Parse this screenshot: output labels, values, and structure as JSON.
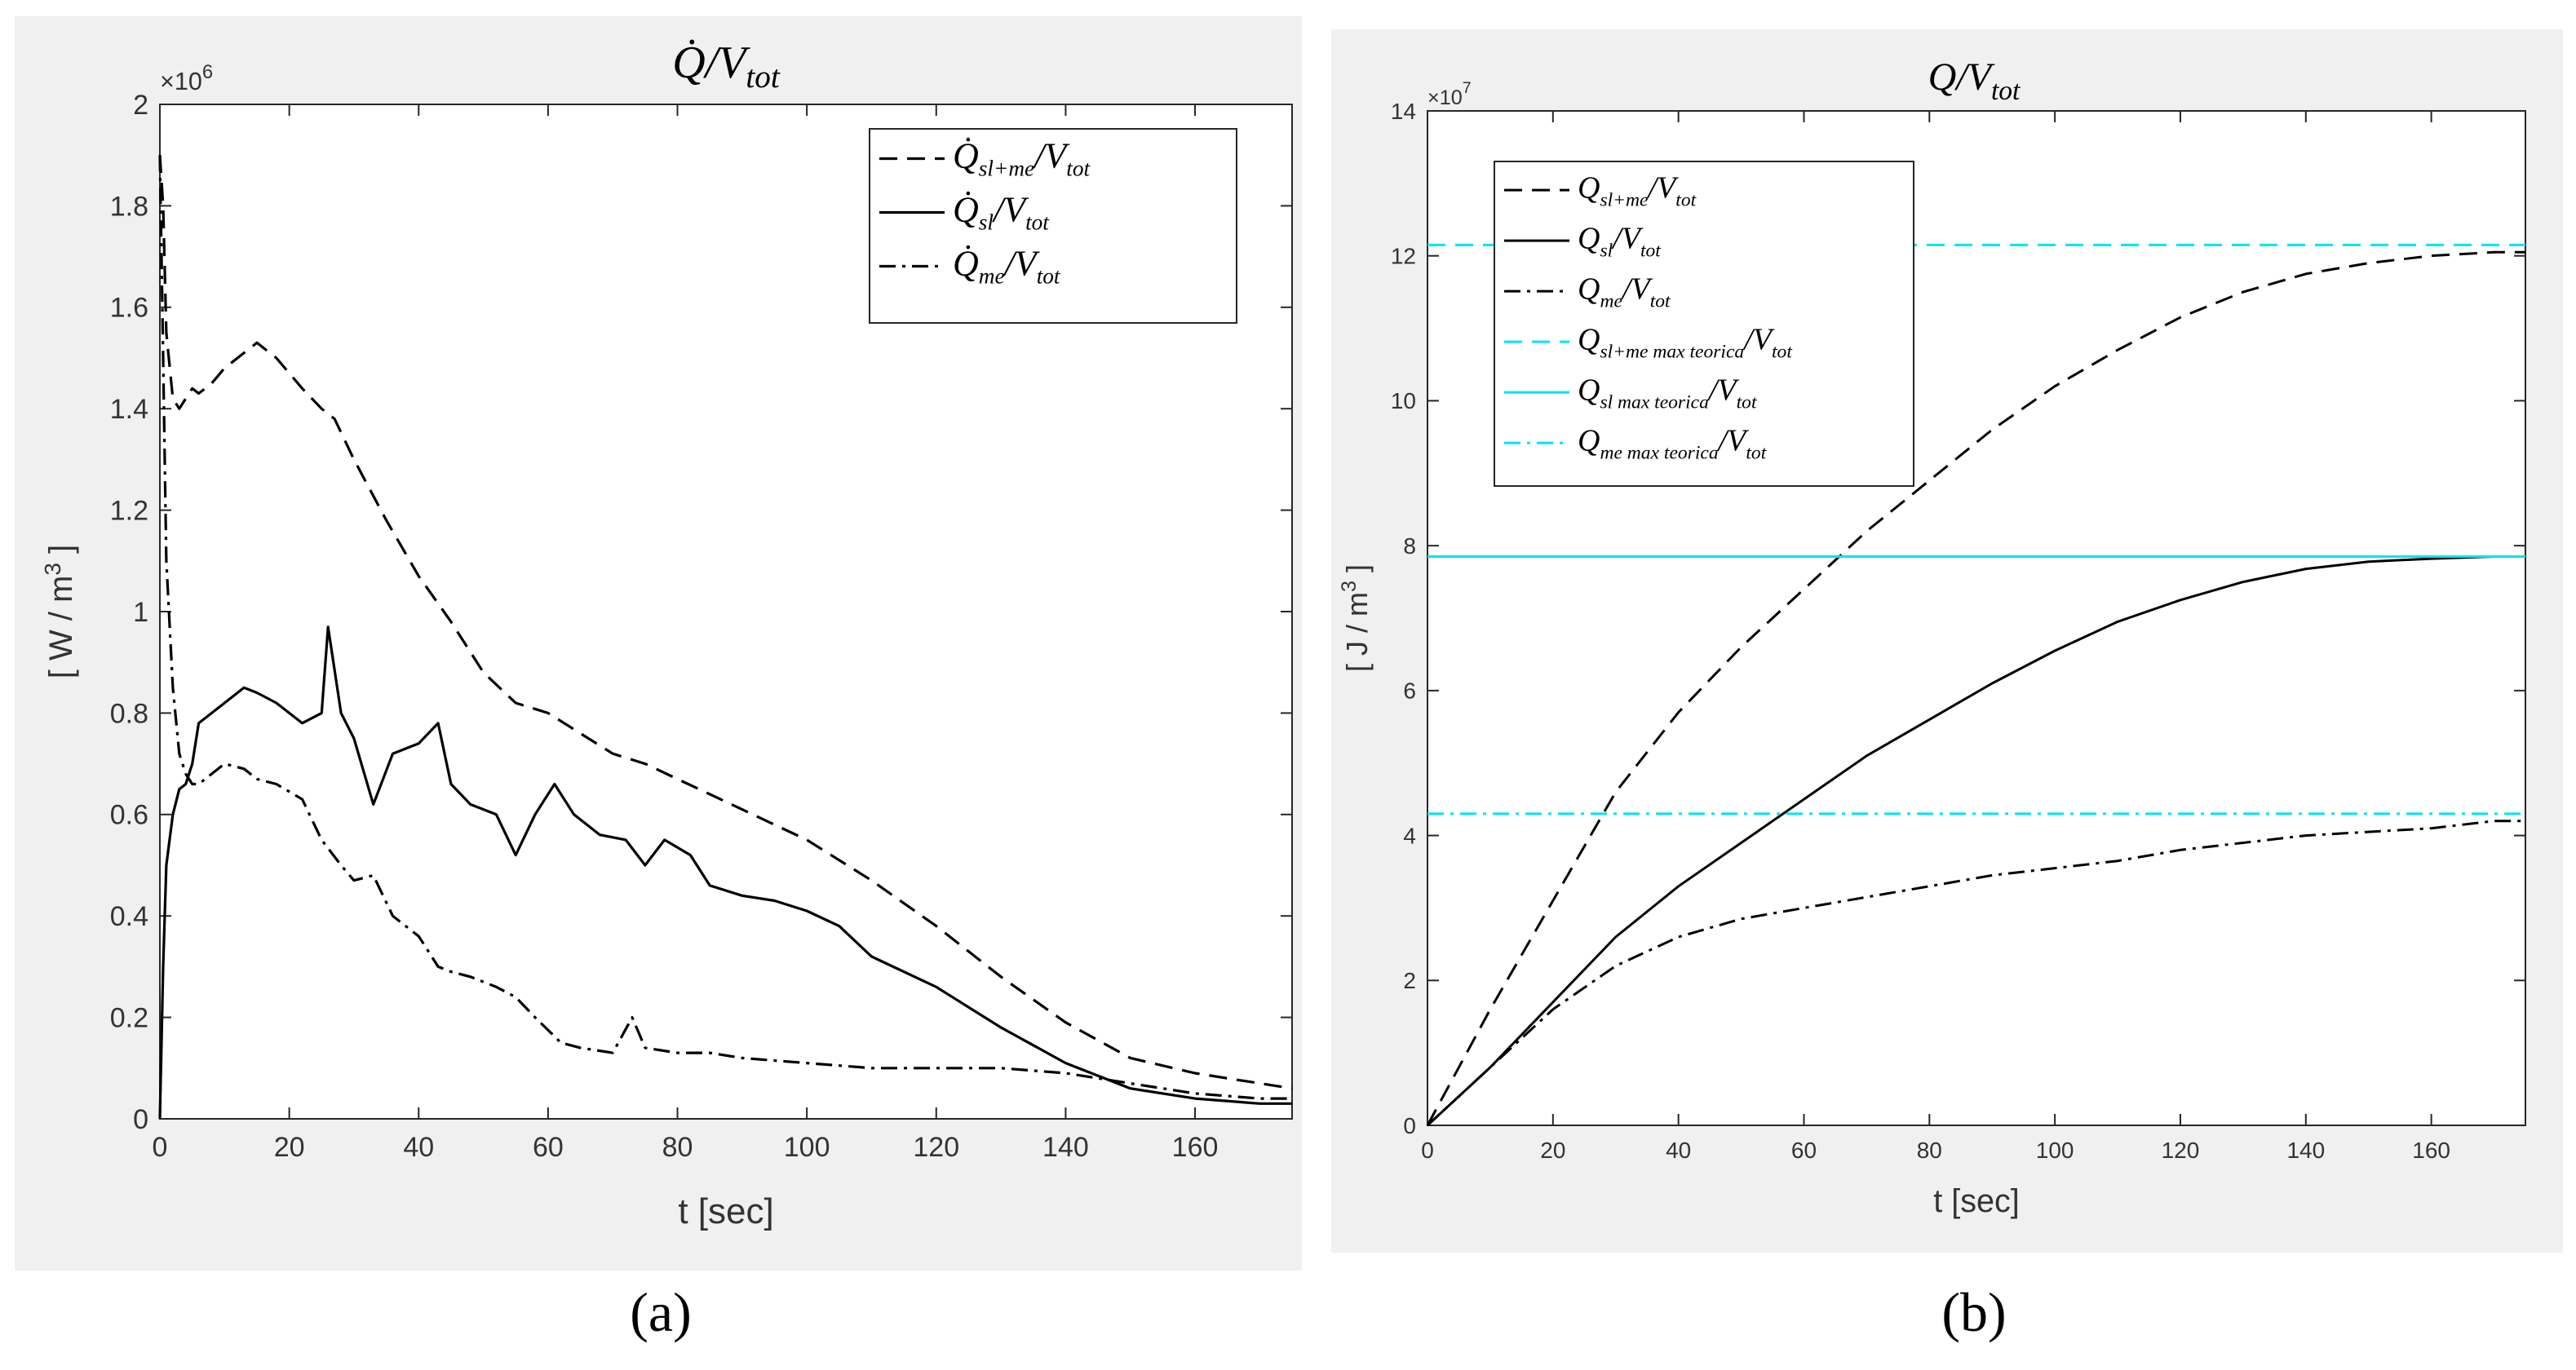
{
  "chart_data": [
    {
      "id": "a",
      "type": "line",
      "title_main": "Q̇",
      "title_sub": "/V",
      "title_subscript": "tot",
      "ylabel": "[ W / m",
      "ylabel_sup": "3",
      "ylabel_close": " ]",
      "xlabel": "t [sec]",
      "y_exponent": "×10",
      "y_exponent_sup": "6",
      "xlim": [
        0,
        175
      ],
      "ylim": [
        0,
        2
      ],
      "xticks": [
        0,
        20,
        40,
        60,
        80,
        100,
        120,
        140,
        160
      ],
      "xtick_labels": [
        "0",
        "20",
        "40",
        "60",
        "80",
        "100",
        "120",
        "140",
        "160"
      ],
      "yticks": [
        0,
        0.2,
        0.4,
        0.6,
        0.8,
        1,
        1.2,
        1.4,
        1.6,
        1.8,
        2
      ],
      "ytick_labels": [
        "0",
        "0.2",
        "0.4",
        "0.6",
        "0.8",
        "1",
        "1.2",
        "1.4",
        "1.6",
        "1.8",
        "2"
      ],
      "legend_position": "top-right",
      "series": [
        {
          "name": "Q̇sl+me/Vtot",
          "label_main": "Q̇",
          "label_sub": "sl+me",
          "label_tail": "/V",
          "label_tail_sub": "tot",
          "style": "dashed",
          "color": "#000000",
          "x": [
            0,
            0.5,
            1,
            2,
            3,
            4,
            5,
            6,
            8,
            10,
            13,
            15,
            18,
            22,
            25,
            27,
            30,
            35,
            40,
            45,
            50,
            55,
            60,
            65,
            70,
            75,
            80,
            85,
            90,
            100,
            110,
            120,
            130,
            140,
            150,
            160,
            170,
            175
          ],
          "y": [
            1.9,
            1.8,
            1.55,
            1.42,
            1.4,
            1.42,
            1.44,
            1.43,
            1.45,
            1.48,
            1.51,
            1.53,
            1.5,
            1.44,
            1.4,
            1.38,
            1.3,
            1.18,
            1.07,
            0.98,
            0.88,
            0.82,
            0.8,
            0.76,
            0.72,
            0.7,
            0.67,
            0.64,
            0.61,
            0.55,
            0.47,
            0.38,
            0.28,
            0.19,
            0.12,
            0.09,
            0.07,
            0.06
          ]
        },
        {
          "name": "Q̇sl/Vtot",
          "label_main": "Q̇",
          "label_sub": "sl",
          "label_tail": "/V",
          "label_tail_sub": "tot",
          "style": "solid",
          "color": "#000000",
          "x": [
            0,
            0.5,
            1,
            2,
            3,
            4,
            5,
            6,
            8,
            10,
            13,
            15,
            18,
            22,
            25,
            26,
            28,
            30,
            33,
            36,
            40,
            43,
            45,
            48,
            52,
            55,
            58,
            61,
            64,
            68,
            72,
            75,
            78,
            82,
            85,
            90,
            95,
            100,
            105,
            110,
            120,
            130,
            140,
            150,
            160,
            170,
            175
          ],
          "y": [
            0,
            0.3,
            0.5,
            0.6,
            0.65,
            0.66,
            0.7,
            0.78,
            0.8,
            0.82,
            0.85,
            0.84,
            0.82,
            0.78,
            0.8,
            0.97,
            0.8,
            0.75,
            0.62,
            0.72,
            0.74,
            0.78,
            0.66,
            0.62,
            0.6,
            0.52,
            0.6,
            0.66,
            0.6,
            0.56,
            0.55,
            0.5,
            0.55,
            0.52,
            0.46,
            0.44,
            0.43,
            0.41,
            0.38,
            0.32,
            0.26,
            0.18,
            0.11,
            0.06,
            0.04,
            0.03,
            0.03
          ]
        },
        {
          "name": "Q̇me/Vtot",
          "label_main": "Q̇",
          "label_sub": "me",
          "label_tail": "/V",
          "label_tail_sub": "tot",
          "style": "dashdot",
          "color": "#000000",
          "x": [
            0,
            0.5,
            1,
            2,
            3,
            4,
            5,
            6,
            8,
            10,
            13,
            15,
            18,
            22,
            25,
            28,
            30,
            33,
            36,
            40,
            43,
            45,
            48,
            52,
            55,
            58,
            62,
            65,
            70,
            73,
            75,
            80,
            85,
            90,
            100,
            110,
            120,
            130,
            140,
            150,
            160,
            170,
            175
          ],
          "y": [
            1.9,
            1.5,
            1.1,
            0.85,
            0.72,
            0.68,
            0.66,
            0.66,
            0.68,
            0.7,
            0.69,
            0.67,
            0.66,
            0.63,
            0.55,
            0.5,
            0.47,
            0.48,
            0.4,
            0.36,
            0.3,
            0.29,
            0.28,
            0.26,
            0.24,
            0.2,
            0.15,
            0.14,
            0.13,
            0.2,
            0.14,
            0.13,
            0.13,
            0.12,
            0.11,
            0.1,
            0.1,
            0.1,
            0.09,
            0.07,
            0.05,
            0.04,
            0.04
          ]
        }
      ]
    },
    {
      "id": "b",
      "type": "line",
      "title_main": "Q",
      "title_sub": "/V",
      "title_subscript": "tot",
      "ylabel": "[ J / m",
      "ylabel_sup": "3",
      "ylabel_close": " ]",
      "xlabel": "t [sec]",
      "y_exponent": "×10",
      "y_exponent_sup": "7",
      "xlim": [
        0,
        175
      ],
      "ylim": [
        0,
        14
      ],
      "xticks": [
        0,
        20,
        40,
        60,
        80,
        100,
        120,
        140,
        160
      ],
      "xtick_labels": [
        "0",
        "20",
        "40",
        "60",
        "80",
        "100",
        "120",
        "140",
        "160"
      ],
      "yticks": [
        0,
        2,
        4,
        6,
        8,
        10,
        12,
        14
      ],
      "ytick_labels": [
        "0",
        "2",
        "4",
        "6",
        "8",
        "10",
        "12",
        "14"
      ],
      "legend_position": "top-left",
      "series": [
        {
          "name": "Qsl+me/Vtot",
          "label_main": "Q",
          "label_sub": "sl+me",
          "label_tail": "/V",
          "label_tail_sub": "tot",
          "style": "dashed",
          "color": "#000000",
          "x": [
            0,
            10,
            20,
            30,
            40,
            50,
            60,
            70,
            80,
            90,
            100,
            110,
            120,
            130,
            140,
            150,
            160,
            170,
            175
          ],
          "y": [
            0,
            1.6,
            3.1,
            4.6,
            5.7,
            6.6,
            7.4,
            8.2,
            8.9,
            9.6,
            10.2,
            10.7,
            11.15,
            11.5,
            11.75,
            11.9,
            12.0,
            12.05,
            12.05
          ]
        },
        {
          "name": "Qsl/Vtot",
          "label_main": "Q",
          "label_sub": "sl",
          "label_tail": "/V",
          "label_tail_sub": "tot",
          "style": "solid",
          "color": "#000000",
          "x": [
            0,
            10,
            20,
            30,
            40,
            50,
            60,
            70,
            80,
            90,
            100,
            110,
            120,
            130,
            140,
            150,
            160,
            170,
            175
          ],
          "y": [
            0,
            0.8,
            1.7,
            2.6,
            3.3,
            3.9,
            4.5,
            5.1,
            5.6,
            6.1,
            6.55,
            6.95,
            7.25,
            7.5,
            7.68,
            7.78,
            7.82,
            7.85,
            7.85
          ]
        },
        {
          "name": "Qme/Vtot",
          "label_main": "Q",
          "label_sub": "me",
          "label_tail": "/V",
          "label_tail_sub": "tot",
          "style": "dashdot",
          "color": "#000000",
          "x": [
            0,
            10,
            20,
            30,
            40,
            50,
            60,
            70,
            80,
            90,
            100,
            110,
            120,
            130,
            140,
            150,
            160,
            170,
            175
          ],
          "y": [
            0,
            0.8,
            1.6,
            2.2,
            2.6,
            2.85,
            3.0,
            3.15,
            3.3,
            3.45,
            3.55,
            3.65,
            3.8,
            3.9,
            4.0,
            4.05,
            4.1,
            4.2,
            4.2
          ]
        },
        {
          "name": "Qsl+me max teorica/Vtot",
          "label_main": "Q",
          "label_sub": "sl+me max teorica",
          "label_tail": "/V",
          "label_tail_sub": "tot",
          "style": "dashed",
          "color": "#00e5ee",
          "x": [
            0,
            175
          ],
          "y": [
            12.15,
            12.15
          ]
        },
        {
          "name": "Qsl max teorica/Vtot",
          "label_main": "Q",
          "label_sub": "sl max teorica",
          "label_tail": "/V",
          "label_tail_sub": "tot",
          "style": "solid",
          "color": "#00e5ee",
          "x": [
            0,
            175
          ],
          "y": [
            7.85,
            7.85
          ]
        },
        {
          "name": "Qme max teorica/Vtot",
          "label_main": "Q",
          "label_sub": "me max teorica",
          "label_tail": "/V",
          "label_tail_sub": "tot",
          "style": "dashdot",
          "color": "#00e5ee",
          "x": [
            0,
            175
          ],
          "y": [
            4.3,
            4.3
          ]
        }
      ]
    }
  ],
  "captions": {
    "a": "(a)",
    "b": "(b)"
  }
}
